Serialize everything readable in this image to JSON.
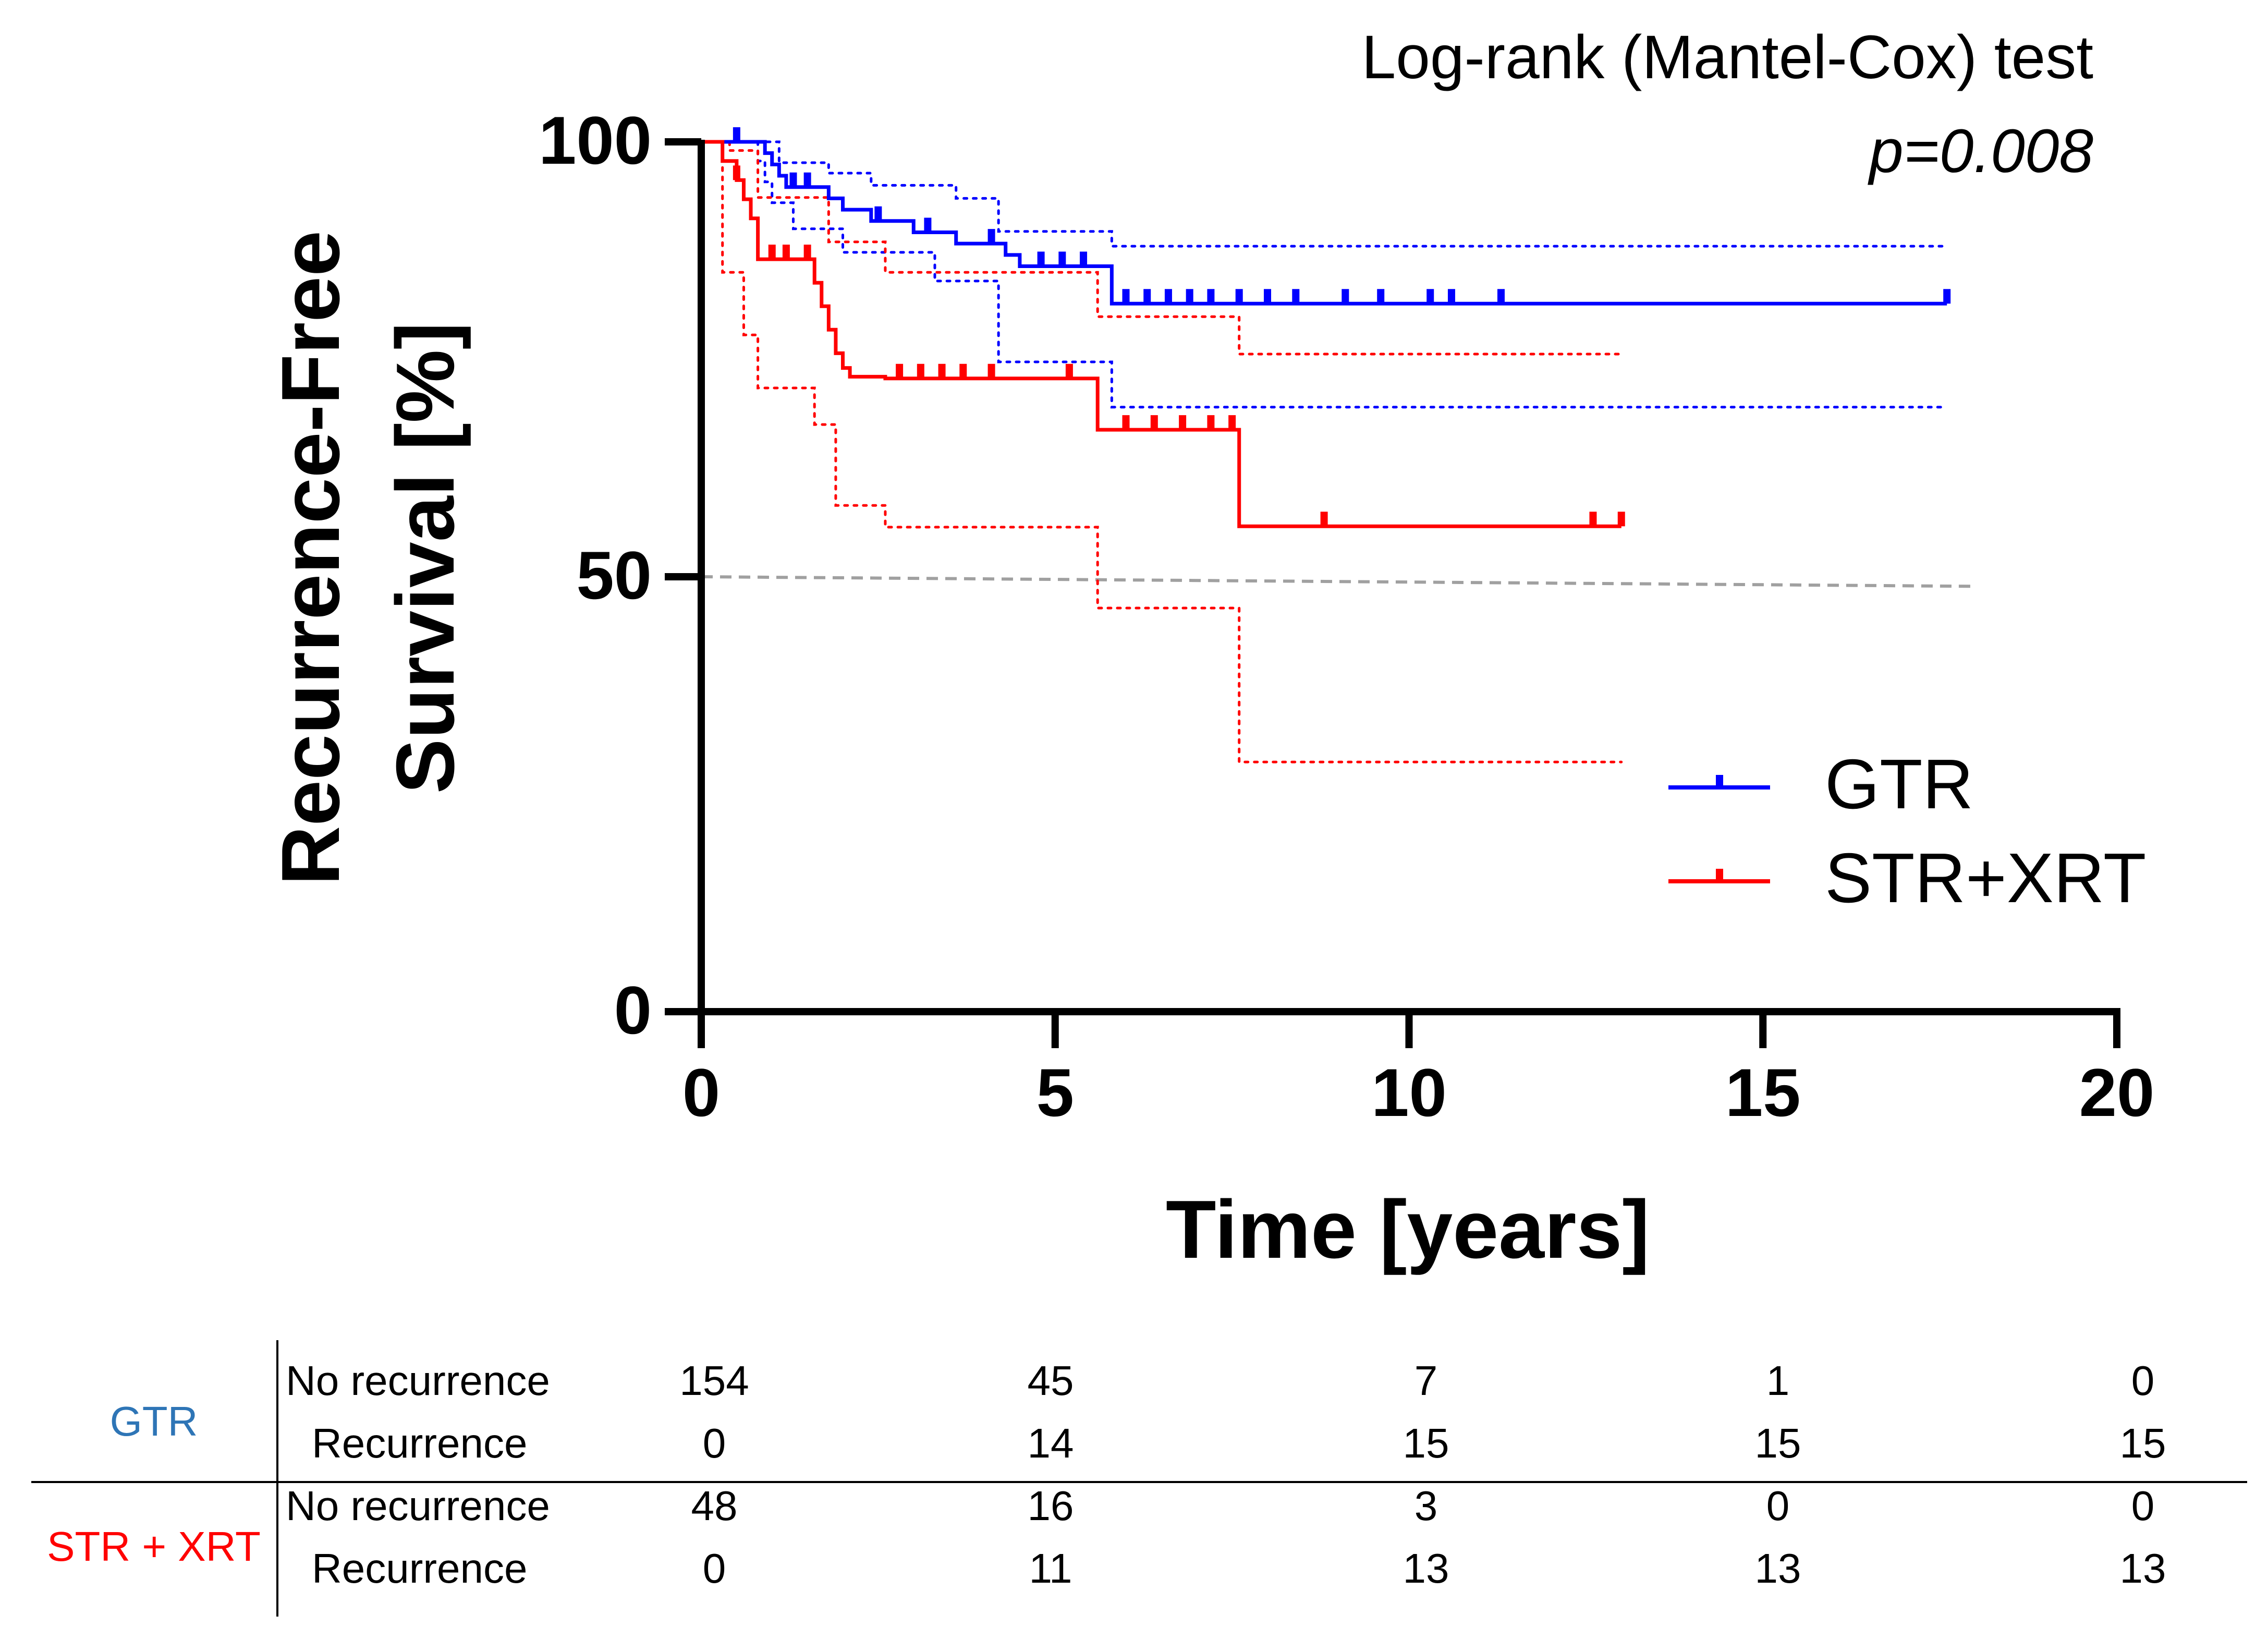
{
  "chart_data": {
    "type": "line",
    "subtype": "kaplan-meier",
    "title": "Log-rank (Mantel-Cox) test",
    "subtitle": "p=0.008",
    "xlabel": "Time [years]",
    "ylabel_line1": "Recurrence-Free",
    "ylabel_line2": "Survival [%]",
    "xlim": [
      0,
      20
    ],
    "ylim": [
      0,
      100
    ],
    "xticks": [
      0,
      5,
      10,
      15,
      20
    ],
    "yticks": [
      0,
      50,
      100
    ],
    "xtick_labels": [
      "0",
      "5",
      "10",
      "15",
      "20"
    ],
    "ytick_labels": [
      "0",
      "50",
      "100"
    ],
    "reference_line": {
      "x": [
        0,
        18
      ],
      "y": [
        50,
        48.9
      ],
      "color": "#a0a0a0"
    },
    "legend_position": "right-middle",
    "series": [
      {
        "name": "GTR",
        "color": "#0000ff",
        "x": [
          0,
          0.8,
          0.9,
          1.0,
          1.1,
          1.2,
          1.8,
          2.0,
          2.4,
          3.0,
          3.6,
          4.3,
          4.5,
          5.8,
          17.6
        ],
        "y": [
          100,
          100,
          98.7,
          97.4,
          96.1,
          94.8,
          93.5,
          92.2,
          90.9,
          89.6,
          88.3,
          87.0,
          85.7,
          81.4,
          81.4
        ],
        "ci_upper_x": [
          0,
          0.8,
          1.1,
          1.8,
          2.4,
          3.6,
          4.2,
          5.8,
          17.6
        ],
        "ci_upper_y": [
          100,
          100,
          97.6,
          96.4,
          95.0,
          93.5,
          89.7,
          88.0,
          88.0
        ],
        "ci_lower_x": [
          0,
          0.8,
          0.9,
          1.0,
          1.3,
          2.0,
          3.3,
          4.2,
          5.8,
          17.6
        ],
        "ci_lower_y": [
          100,
          97.8,
          95.4,
          93.0,
          90.0,
          87.3,
          84.0,
          74.7,
          69.5,
          69.5
        ],
        "censor_x": [
          0.5,
          1.3,
          1.5,
          2.5,
          3.2,
          4.1,
          4.8,
          5.1,
          5.4,
          6.0,
          6.3,
          6.6,
          6.9,
          7.2,
          7.6,
          8.0,
          8.4,
          9.1,
          9.6,
          10.3,
          10.6,
          11.3,
          17.6
        ],
        "censor_y": [
          100,
          94.8,
          94.8,
          90.9,
          89.6,
          88.3,
          85.7,
          85.7,
          85.7,
          81.4,
          81.4,
          81.4,
          81.4,
          81.4,
          81.4,
          81.4,
          81.4,
          81.4,
          81.4,
          81.4,
          81.4,
          81.4,
          81.4
        ]
      },
      {
        "name": "STR+XRT",
        "color": "#ff0000",
        "x": [
          0,
          0.3,
          0.5,
          0.6,
          0.7,
          0.8,
          1.6,
          1.7,
          1.8,
          1.9,
          2.0,
          2.1,
          2.6,
          5.6,
          7.6,
          13.0
        ],
        "y": [
          100,
          97.8,
          95.6,
          93.4,
          91.2,
          86.5,
          83.8,
          81.1,
          78.4,
          75.7,
          74.0,
          73.0,
          72.8,
          66.9,
          55.8,
          55.8
        ],
        "ci_upper_x": [
          0,
          0.4,
          0.8,
          1.8,
          2.6,
          5.6,
          7.6,
          13.0
        ],
        "ci_upper_y": [
          100,
          99.0,
          93.6,
          88.5,
          85.0,
          79.9,
          75.6,
          75.6
        ],
        "ci_lower_x": [
          0,
          0.3,
          0.6,
          0.8,
          1.6,
          1.9,
          2.6,
          5.6,
          7.6,
          13.0
        ],
        "ci_lower_y": [
          100,
          85.0,
          77.8,
          71.7,
          67.5,
          58.2,
          55.7,
          46.4,
          28.7,
          28.7
        ],
        "censor_x": [
          0.5,
          1.0,
          1.2,
          1.5,
          2.8,
          3.1,
          3.4,
          3.7,
          4.1,
          5.2,
          6.0,
          6.4,
          6.8,
          7.2,
          7.5,
          8.8,
          12.6,
          13.0
        ],
        "censor_y": [
          95.6,
          86.5,
          86.5,
          86.5,
          72.8,
          72.8,
          72.8,
          72.8,
          72.8,
          72.8,
          66.9,
          66.9,
          66.9,
          66.9,
          66.9,
          55.8,
          55.8,
          55.8
        ]
      }
    ],
    "risk_table": {
      "times": [
        0,
        5,
        10,
        15,
        20
      ],
      "groups": [
        {
          "name": "GTR",
          "color": "#2e75b6",
          "rows": [
            {
              "label": "No recurrence",
              "values": [
                "154",
                "45",
                "7",
                "1",
                "0"
              ]
            },
            {
              "label": "Recurrence",
              "values": [
                "0",
                "14",
                "15",
                "15",
                "15"
              ]
            }
          ]
        },
        {
          "name": "STR + XRT",
          "color": "#ff0000",
          "rows": [
            {
              "label": "No recurrence",
              "values": [
                "48",
                "16",
                "3",
                "0",
                "0"
              ]
            },
            {
              "label": "Recurrence",
              "values": [
                "0",
                "11",
                "13",
                "13",
                "13"
              ]
            }
          ]
        }
      ]
    }
  }
}
